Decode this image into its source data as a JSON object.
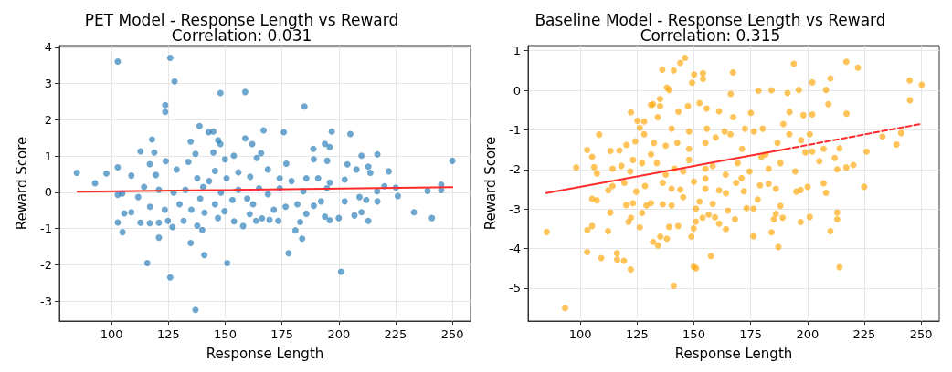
{
  "chart_data": [
    {
      "type": "scatter",
      "title": "PET Model - Response Length vs Reward",
      "subtitle": "Correlation: 0.031",
      "xlabel": "Response Length",
      "ylabel": "Reward Score",
      "xlim": [
        77,
        258
      ],
      "ylim": [
        -3.55,
        4.05
      ],
      "xticks": [
        100,
        125,
        150,
        175,
        200,
        225,
        250
      ],
      "yticks": [
        -3,
        -2,
        -1,
        0,
        1,
        2,
        3,
        4
      ],
      "grid": true,
      "marker": "circle",
      "series": [
        {
          "color": "#1f77b4",
          "x": [
            102.7,
            125.8,
            127.7,
            147.9,
            158.8,
            123.6,
            123.6,
            184.9,
            138.7,
            142.7,
            144.8,
            166.9,
            175.8,
            196.9,
            205.1,
            117.8,
            134.8,
            146.9,
            147.9,
            158.8,
            161.9,
            193.9,
            196.0,
            188.8,
            112.7,
            118.8,
            144.8,
            136.9,
            165.8,
            217.0,
            210.0,
            250.0,
            84.7,
            97.7,
            92.7,
            102.7,
            108.7,
            116.8,
            123.8,
            153.8,
            149.9,
            163.9,
            176.9,
            189.0,
            194.9,
            222.0,
            213.9,
            203.8,
            119.5,
            128.6,
            133.8,
            137.7,
            142.9,
            145.5,
            150.6,
            155.8,
            161.0,
            168.8,
            174.0,
            179.2,
            185.7,
            190.9,
            196.1,
            202.6,
            207.8,
            213.0,
            220.1,
            225.1,
            226.0,
            239.1,
            245.1,
            245.1,
            233.1,
            241.0,
            217.0,
            213.0,
            210.0,
            206.9,
            212.1,
            200.0,
            196.0,
            193.9,
            189.0,
            185.7,
            183.0,
            180.9,
            183.9,
            177.9,
            201.0,
            173.4,
            169.5,
            166.2,
            163.6,
            160.8,
            157.9,
            153.9,
            146.8,
            149.7,
            140.9,
            137.7,
            139.9,
            134.8,
            140.8,
            150.9,
            136.9,
            125.8,
            115.7,
            120.8,
            126.8,
            131.7,
            124.8,
            120.8,
            116.8,
            112.7,
            102.7,
            104.8,
            105.6,
            104.7,
            102.7,
            108.7,
            111.7,
            116.9,
            123.4,
            129.9,
            135.1,
            145.5,
            153.2,
            159.7,
            168.8,
            176.6,
            181.8,
            192.2,
            202.6,
            209.1,
            132.5,
            140.3,
            148.1,
            155.8,
            164.9,
            174.0,
            184.4,
            194.8,
            216.9,
            127.3,
            120.8,
            114.3,
            139.0,
            162.3,
            171.4
          ],
          "values": [
            3.61,
            3.71,
            3.06,
            2.74,
            2.77,
            2.41,
            2.22,
            2.37,
            1.83,
            1.66,
            1.68,
            1.71,
            1.66,
            1.68,
            1.61,
            1.46,
            1.4,
            1.44,
            1.33,
            1.49,
            1.33,
            1.34,
            1.25,
            1.2,
            1.13,
            1.1,
            1.1,
            1.06,
            1.08,
            1.05,
            1.01,
            0.87,
            0.54,
            0.52,
            0.25,
            0.69,
            0.46,
            0.78,
            0.86,
            1.01,
            0.91,
            0.95,
            0.79,
            0.91,
            0.87,
            0.58,
            0.54,
            0.77,
            0.48,
            0.63,
            0.84,
            0.39,
            0.31,
            0.59,
            0.39,
            0.55,
            0.43,
            0.63,
            0.39,
            0.31,
            0.39,
            0.39,
            0.27,
            0.35,
            0.63,
            0.71,
            0.17,
            0.13,
            -0.1,
            0.04,
            0.21,
            0.06,
            -0.55,
            -0.71,
            -0.25,
            -0.79,
            -0.55,
            -0.64,
            -0.21,
            -0.71,
            -0.77,
            -0.67,
            -0.37,
            -0.59,
            -0.82,
            -1.05,
            -1.28,
            -1.68,
            -2.19,
            -0.79,
            -0.76,
            -0.72,
            -0.79,
            -0.6,
            -0.93,
            -0.8,
            -0.71,
            -0.52,
            -0.56,
            -0.92,
            -1.04,
            -1.4,
            -1.73,
            -1.95,
            -3.24,
            -2.35,
            -1.95,
            -1.25,
            -0.96,
            -0.79,
            -0.79,
            -0.84,
            -0.85,
            -0.84,
            -0.83,
            -1.1,
            -0.58,
            -0.03,
            -0.07,
            -0.55,
            -0.13,
            -0.4,
            -0.48,
            -0.33,
            -0.48,
            -0.33,
            -0.21,
            -0.17,
            -0.05,
            -0.4,
            -0.33,
            -0.25,
            -0.25,
            -0.13,
            0.07,
            0.15,
            -0.01,
            0.07,
            0.11,
            0.11,
            0.03,
            0.11,
            0.03,
            -0.01,
            0.07,
            0.15,
            -0.17,
            -0.33,
            -0.48
          ]
        },
        {
          "type": "line",
          "color": "#ff2a2a",
          "line_style": "solid",
          "marker": "none",
          "x": [
            85,
            250
          ],
          "values": [
            0.02,
            0.14
          ]
        }
      ]
    },
    {
      "type": "scatter",
      "title": "Baseline Model - Response Length vs Reward",
      "subtitle": "Correlation: 0.315",
      "xlabel": "Response Length",
      "ylabel": "Reward Score",
      "xlim": [
        77,
        258
      ],
      "ylim": [
        -5.83,
        1.13
      ],
      "xticks": [
        100,
        125,
        150,
        175,
        200,
        225,
        250
      ],
      "yticks": [
        -5,
        -4,
        -3,
        -2,
        -1,
        0,
        1
      ],
      "grid": true,
      "marker": "circle",
      "series": [
        {
          "color": "#ffa500",
          "x": [
            85.2,
            93.3,
            98.2,
            103.0,
            103.0,
            105.2,
            103.1,
            105.2,
            108.3,
            106.1,
            107.3,
            105.2,
            107.3,
            109.2,
            112.2,
            113.2,
            116.1,
            116.2,
            119.2,
            122.2,
            113.3,
            114.2,
            112.3,
            117.2,
            122.3,
            120.3,
            123.2,
            124.2,
            125.1,
            126.2,
            128.1,
            128.1,
            131.1,
            132.0,
            135.1,
            135.1,
            136.1,
            141.1,
            138.1,
            139.1,
            144.0,
            146.1,
            150.1,
            154.0,
            154.0,
            149.2,
            167.2,
            194.0,
            217.1,
            222.2,
            245.0,
            250.3,
            245.1,
            210.1,
            202.1,
            208.2,
            196.2,
            184.2,
            178.4,
            166.2,
            191.2,
            217.2,
            209.2,
            202.1,
            198.2,
            192.1,
            189.4,
            175.1,
            167.3,
            161.1,
            155.6,
            152.5,
            147.4,
            143.2,
            134.1,
            233.0,
            241.2,
            239.2,
            226.0,
            225.0,
            220.2,
            217.1,
            214.1,
            213.1,
            212.0,
            207.1,
            205.2,
            202.1,
            199.1,
            200.1,
            207.1,
            208.2,
            197.0,
            195.1,
            213.1,
            213.1,
            210.1,
            214.1,
            201.0,
            197.0,
            189.1,
            186.1,
            185.2,
            188.1,
            184.2,
            187.2,
            176.2,
            173.2,
            176.2,
            178.1,
            182.9,
            186.1,
            179.1,
            172.0,
            168.1,
            164.1,
            161.1,
            165.0,
            159.3,
            157.5,
            156.5,
            153.8,
            150.9,
            149.9,
            148.9,
            149.9,
            150.9,
            143.1,
            139.1,
            138.1,
            135.2,
            132.0,
            134.2,
            141.1,
            126.2,
            121.2,
            122.3,
            120.2,
            123.2,
            127.2,
            129.1,
            131.1,
            136.3,
            140.2,
            145.3,
            150.9,
            152.5,
            155.1,
            158.3,
            161.1,
            164.1,
            168.6,
            171.0,
            124.6,
            128.5,
            136.3,
            140.2,
            144.0,
            150.0,
            155.1,
            119.4,
            114.2,
            118.1,
            122.0,
            127.2,
            131.1,
            133.7,
            137.6,
            141.5,
            145.3,
            147.9,
            155.1,
            158.3,
            164.0,
            169.3,
            174.5,
            179.7,
            182.9,
            188.1,
            194.6,
            132.4,
            137.6,
            142.7,
            147.9,
            155.1,
            159.6,
            166.1,
            171.2,
            176.4,
            181.6,
            186.8,
            192.0,
            197.2,
            201.0,
            140.2,
            147.9,
            155.7,
            163.5,
            172.5,
            180.3
          ],
          "values": [
            -3.58,
            -5.5,
            -1.95,
            -1.51,
            -4.09,
            -3.43,
            -3.53,
            -1.68,
            -1.12,
            -1.94,
            -2.1,
            -2.74,
            -2.78,
            -4.24,
            -3.56,
            -3.09,
            -4.12,
            -4.28,
            -4.31,
            -4.53,
            -1.53,
            -1.98,
            -2.53,
            -1.52,
            -0.56,
            -1.38,
            -1.76,
            -1.29,
            -0.77,
            -0.95,
            -0.79,
            -1.11,
            -0.37,
            -0.35,
            -0.22,
            -0.4,
            0.52,
            0.5,
            0.07,
            0.01,
            0.69,
            0.82,
            0.4,
            0.43,
            0.29,
            0.19,
            0.45,
            0.67,
            0.72,
            0.57,
            0.25,
            0.14,
            -0.25,
            0.3,
            0.2,
            0.01,
            0.01,
            0.0,
            -0.01,
            -0.09,
            -0.07,
            -0.59,
            -0.35,
            -0.61,
            -0.63,
            -0.55,
            -0.85,
            -0.57,
            -0.68,
            -0.53,
            -0.46,
            -0.32,
            -0.4,
            -0.54,
            -0.68,
            -1.17,
            -1.08,
            -1.37,
            -1.55,
            -2.44,
            -1.89,
            -1.95,
            -1.47,
            -2.0,
            -1.71,
            -1.48,
            -1.79,
            -1.55,
            -1.57,
            -2.44,
            -2.35,
            -2.59,
            -2.52,
            -2.56,
            -3.09,
            -3.26,
            -3.56,
            -4.47,
            -3.2,
            -3.33,
            -3.22,
            -3.12,
            -3.26,
            -2.92,
            -3.59,
            -3.96,
            -3.69,
            -2.98,
            -2.99,
            -2.76,
            -2.36,
            -2.49,
            -2.4,
            -2.55,
            -3.26,
            -3.51,
            -3.37,
            -3.04,
            -3.21,
            -4.19,
            -3.14,
            -3.22,
            -3.32,
            -3.49,
            -3.7,
            -4.46,
            -4.5,
            -3.43,
            -3.45,
            -3.75,
            -3.7,
            -3.83,
            -3.92,
            -4.94,
            -3.46,
            -3.33,
            -3.22,
            -2.9,
            -2.85,
            -3.1,
            -2.91,
            -2.85,
            -2.88,
            -2.91,
            -2.7,
            -2.99,
            -2.81,
            -2.49,
            -2.87,
            -2.53,
            -2.6,
            -2.34,
            -2.22,
            -2.56,
            -2.42,
            -2.34,
            -2.49,
            -2.51,
            -2.31,
            -2.23,
            -2.34,
            -2.42,
            -1.91,
            -2.05,
            -1.84,
            -1.62,
            -1.84,
            -2.13,
            -1.98,
            -2.05,
            -1.76,
            -1.98,
            -1.91,
            -2.13,
            -1.84,
            -2.05,
            -1.69,
            -1.98,
            -1.84,
            -2.05,
            -1.33,
            -1.4,
            -1.33,
            -1.48,
            -1.33,
            -1.19,
            -1.11,
            -1.48,
            -1.04,
            -1.62,
            -1.33,
            -1.11,
            -1.26,
            -1.11,
            -0.97,
            -1.04,
            -0.97,
            -1.04,
            -0.97,
            -0.97
          ]
        },
        {
          "type": "line",
          "color": "#ff2a2a",
          "line_style": "solid",
          "marker": "none",
          "x": [
            85,
            190
          ],
          "values": [
            -2.6,
            -1.49
          ]
        },
        {
          "type": "line",
          "color": "#ff2a2a",
          "line_style": "dashed",
          "marker": "none",
          "x": [
            190,
            250
          ],
          "values": [
            -1.49,
            -0.85
          ]
        }
      ]
    }
  ]
}
